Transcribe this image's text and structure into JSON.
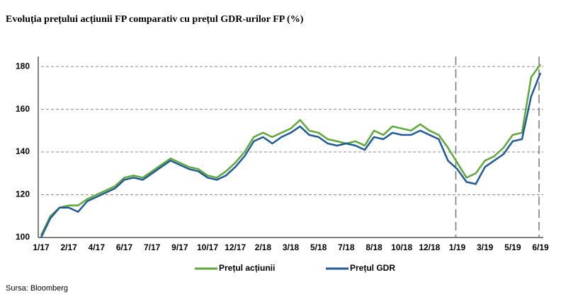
{
  "chart_data": {
    "type": "line",
    "title": "Evoluția prețului acțiunii FP comparativ cu prețul GDR-urilor FP (%)",
    "source": "Sursa: Bloomberg",
    "categories": [
      "1/17",
      null,
      null,
      "2/17",
      null,
      null,
      "4/17",
      null,
      null,
      "6/17",
      null,
      null,
      "7/17",
      null,
      null,
      "9/17",
      null,
      null,
      "10/17",
      null,
      null,
      "12/17",
      null,
      null,
      "2/18",
      null,
      null,
      "3/18",
      null,
      null,
      "5/18",
      null,
      null,
      "7/18",
      null,
      null,
      "8/18",
      null,
      null,
      "10/18",
      null,
      null,
      "12/18",
      null,
      null,
      "1/19",
      null,
      null,
      "3/19",
      null,
      null,
      "5/19",
      null,
      null,
      "6/19"
    ],
    "series": [
      {
        "name": "Prețul acțiunii",
        "color": "#5ea83a",
        "values": [
          101,
          110,
          114,
          115,
          115,
          118,
          120,
          122,
          124,
          128,
          129,
          128,
          131,
          134,
          137,
          135,
          133,
          132,
          129,
          128,
          131,
          135,
          140,
          147,
          149,
          147,
          149,
          151,
          155,
          150,
          149,
          146,
          145,
          144,
          145,
          143,
          150,
          148,
          152,
          151,
          150,
          153,
          150,
          148,
          142,
          135,
          128,
          130,
          136,
          138,
          142,
          148,
          149,
          175,
          181
        ]
      },
      {
        "name": "Prețul GDR",
        "color": "#1f5a99",
        "values": [
          100,
          109,
          114,
          114,
          112,
          117,
          119,
          121,
          123,
          127,
          128,
          127,
          130,
          133,
          136,
          134,
          132,
          131,
          128,
          127,
          129,
          133,
          138,
          145,
          147,
          144,
          147,
          149,
          152,
          148,
          147,
          144,
          143,
          144,
          143,
          141,
          147,
          146,
          149,
          148,
          148,
          150,
          148,
          146,
          136,
          132,
          126,
          125,
          133,
          136,
          139,
          145,
          146,
          166,
          177
        ]
      }
    ],
    "ylim": [
      100,
      185
    ],
    "yticks": [
      100,
      120,
      140,
      160,
      180
    ],
    "grid": true,
    "legend": "bottom"
  }
}
